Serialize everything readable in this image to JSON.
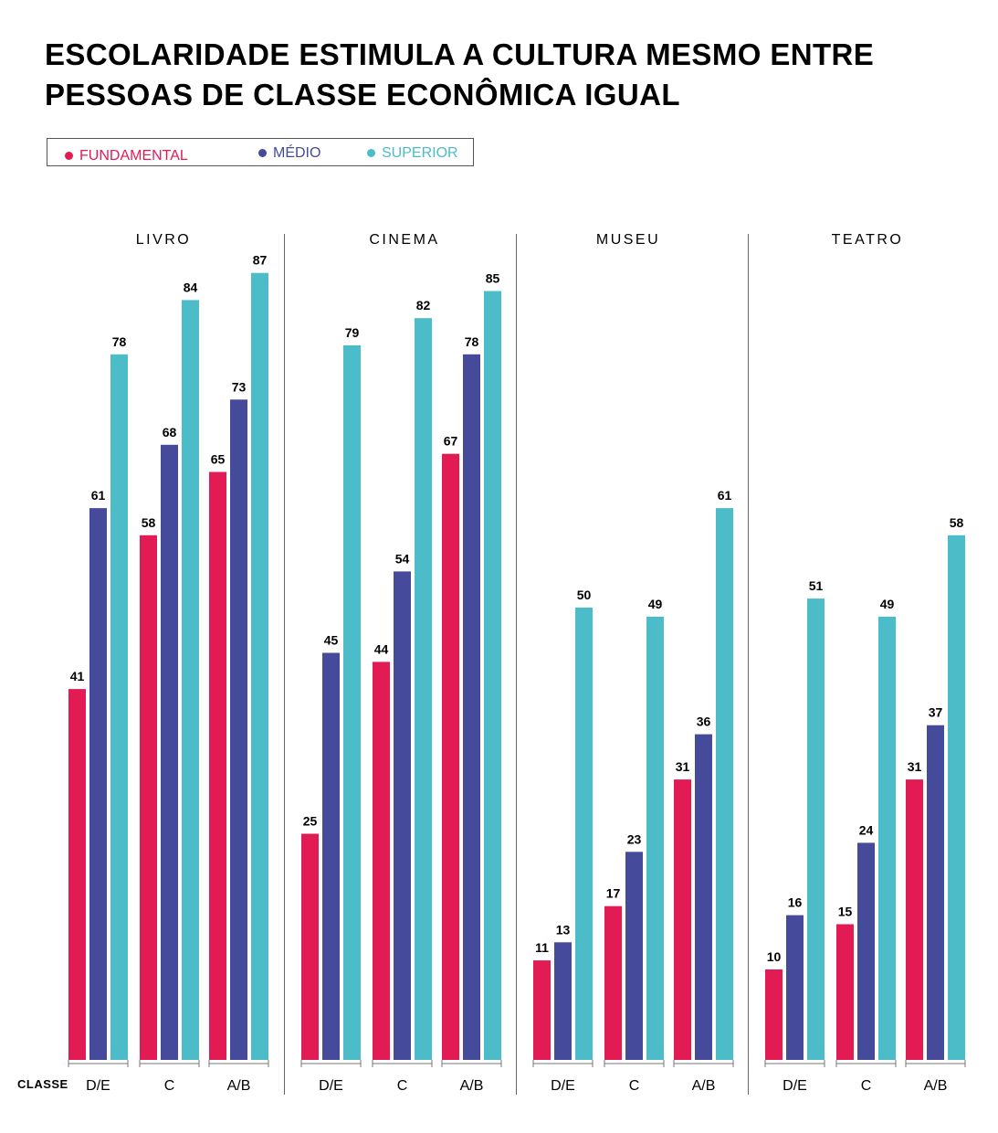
{
  "title": {
    "line1": "ESCOLARIDADE ESTIMULA A CULTURA MESMO ENTRE",
    "line2": "PESSOAS DE CLASSE ECONÔMICA IGUAL"
  },
  "legend": [
    {
      "label": "FUNDAMENTAL",
      "color": "#e31b54"
    },
    {
      "label": "MÉDIO",
      "color": "#454a9a"
    },
    {
      "label": "SUPERIOR",
      "color": "#4bbcc8"
    }
  ],
  "axis_word": "CLASSE",
  "colors": {
    "fundamental": "#e31b54",
    "medio": "#454a9a",
    "superior": "#4bbcc8"
  },
  "chart_data": {
    "type": "bar",
    "ylim": [
      0,
      90
    ],
    "grid": false,
    "legend_position": "top-left",
    "categories": [
      "D/E",
      "C",
      "A/B"
    ],
    "panels": [
      {
        "title": "LIVRO",
        "series": [
          {
            "name": "FUNDAMENTAL",
            "values": [
              41,
              58,
              65
            ]
          },
          {
            "name": "MÉDIO",
            "values": [
              61,
              68,
              73
            ]
          },
          {
            "name": "SUPERIOR",
            "values": [
              78,
              84,
              87
            ]
          }
        ]
      },
      {
        "title": "CINEMA",
        "series": [
          {
            "name": "FUNDAMENTAL",
            "values": [
              25,
              44,
              67
            ]
          },
          {
            "name": "MÉDIO",
            "values": [
              45,
              54,
              78
            ]
          },
          {
            "name": "SUPERIOR",
            "values": [
              79,
              82,
              85
            ]
          }
        ]
      },
      {
        "title": "MUSEU",
        "series": [
          {
            "name": "FUNDAMENTAL",
            "values": [
              11,
              17,
              31
            ]
          },
          {
            "name": "MÉDIO",
            "values": [
              13,
              23,
              36
            ]
          },
          {
            "name": "SUPERIOR",
            "values": [
              50,
              49,
              61
            ]
          }
        ]
      },
      {
        "title": "TEATRO",
        "series": [
          {
            "name": "FUNDAMENTAL",
            "values": [
              10,
              15,
              31
            ]
          },
          {
            "name": "MÉDIO",
            "values": [
              16,
              24,
              37
            ]
          },
          {
            "name": "SUPERIOR",
            "values": [
              51,
              49,
              58
            ]
          }
        ]
      }
    ]
  }
}
